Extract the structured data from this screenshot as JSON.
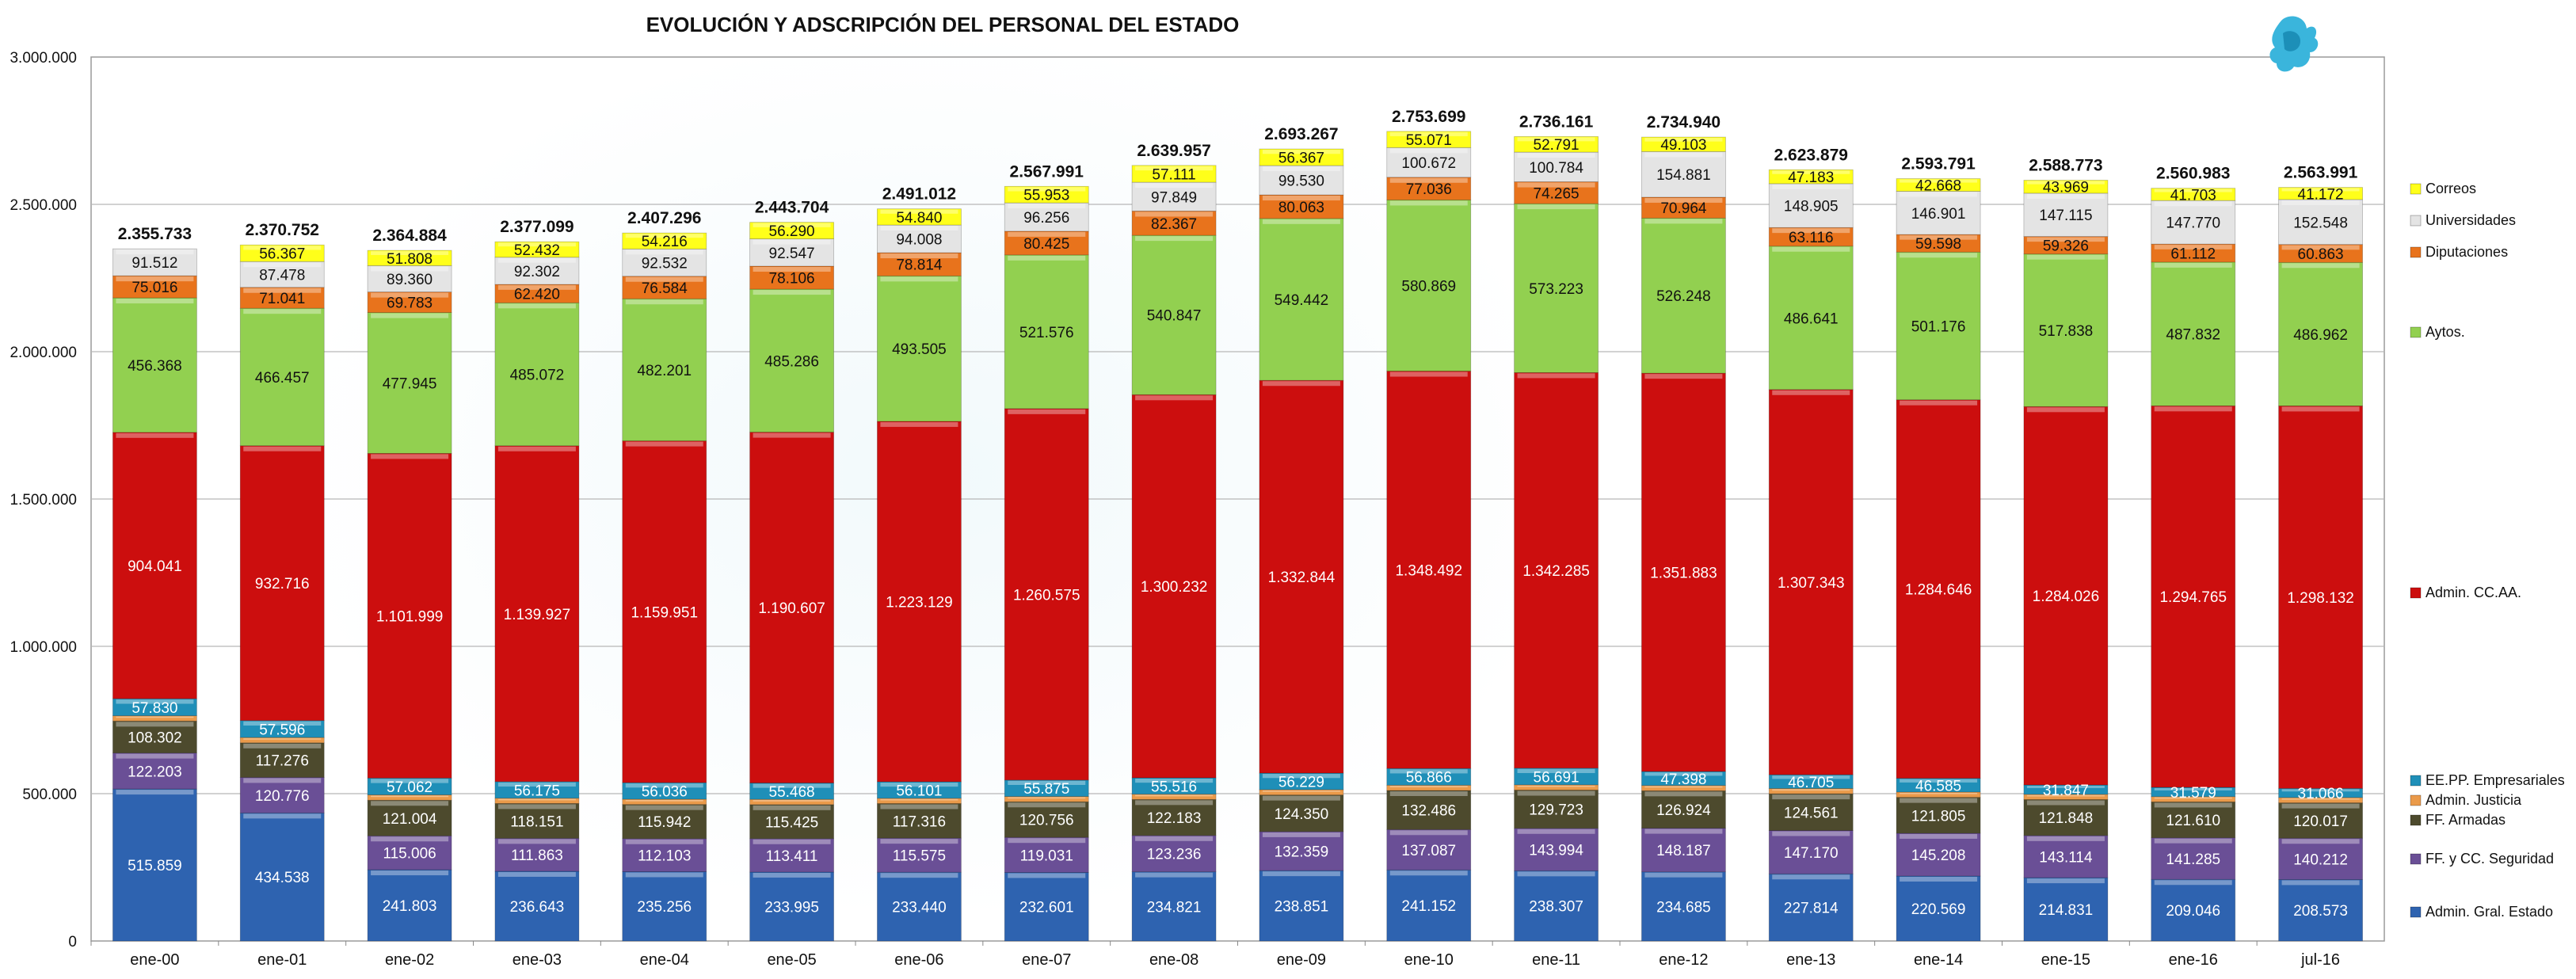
{
  "chart_data": {
    "type": "bar",
    "stacked": true,
    "title": "EVOLUCIÓN Y ADSCRIPCIÓN DEL PERSONAL DEL ESTADO",
    "categories": [
      "ene-00",
      "ene-01",
      "ene-02",
      "ene-03",
      "ene-04",
      "ene-05",
      "ene-06",
      "ene-07",
      "ene-08",
      "ene-09",
      "ene-10",
      "ene-11",
      "ene-12",
      "ene-13",
      "ene-14",
      "ene-15",
      "ene-16",
      "jul-16"
    ],
    "ylim": [
      0,
      3000000
    ],
    "yticks": [
      "0",
      "500.000",
      "1.000.000",
      "1.500.000",
      "2.000.000",
      "2.500.000",
      "3.000.000"
    ],
    "grid": true,
    "legend_position": "right",
    "series": [
      {
        "name": "Admin. Gral. Estado",
        "color": "#2e63b0",
        "text_color": "#ffffff",
        "values": [
          515859,
          434538,
          241803,
          236643,
          235256,
          233995,
          233440,
          232601,
          234821,
          238851,
          241152,
          238307,
          234685,
          227814,
          220569,
          214831,
          209046,
          208573
        ],
        "labels": [
          "515.859",
          "434.538",
          "241.803",
          "236.643",
          "235.256",
          "233.995",
          "233.440",
          "232.601",
          "234.821",
          "238.851",
          "241.152",
          "238.307",
          "234.685",
          "227.814",
          "220.569",
          "214.831",
          "209.046",
          "208.573"
        ]
      },
      {
        "name": "FF. y CC. Seguridad",
        "color": "#6a4f96",
        "text_color": "#ffffff",
        "values": [
          122203,
          120776,
          115006,
          111863,
          112103,
          113411,
          115575,
          119031,
          123236,
          132359,
          137087,
          143994,
          148187,
          147170,
          145208,
          143114,
          141285,
          140212
        ],
        "labels": [
          "122.203",
          "120.776",
          "115.006",
          "111.863",
          "112.103",
          "113.411",
          "115.575",
          "119.031",
          "123.236",
          "132.359",
          "137.087",
          "143.994",
          "148.187",
          "147.170",
          "145.208",
          "143.114",
          "141.285",
          "140.212"
        ]
      },
      {
        "name": "FF. Armadas",
        "color": "#4d4a2d",
        "text_color": "#ffffff",
        "values": [
          108302,
          117276,
          121004,
          118151,
          115942,
          115425,
          117316,
          120756,
          122183,
          124350,
          132486,
          129723,
          126924,
          124561,
          121805,
          121848,
          121610,
          120017
        ],
        "labels": [
          "108.302",
          "117.276",
          "121.004",
          "118.151",
          "115.942",
          "115.425",
          "117.316",
          "120.756",
          "122.183",
          "124.350",
          "132.486",
          "129.723",
          "126.924",
          "124.561",
          "121.805",
          "121.848",
          "121.610",
          "120.017"
        ]
      },
      {
        "name": "Admin. Justicia",
        "color": "#ea9a4a",
        "text_color": "#ffffff",
        "values": [
          18000,
          18000,
          18000,
          18000,
          18000,
          18000,
          18000,
          18000,
          18000,
          18000,
          18000,
          18000,
          18000,
          18000,
          18000,
          18000,
          18000,
          18000
        ],
        "labels": [
          "",
          "",
          "",
          "",
          "",
          "",
          "",
          "",
          "",
          "",
          "",
          "",
          "",
          "",
          "",
          "",
          "",
          ""
        ]
      },
      {
        "name": "EE.PP. Empresariales",
        "color": "#1f8fb8",
        "text_color": "#ffffff",
        "values": [
          57830,
          57596,
          57062,
          56175,
          56036,
          55468,
          56101,
          55875,
          55516,
          56229,
          56866,
          56691,
          47398,
          46705,
          46585,
          31847,
          31579,
          31066
        ],
        "labels": [
          "57.830",
          "57.596",
          "57.062",
          "56.175",
          "56.036",
          "55.468",
          "56.101",
          "55.875",
          "55.516",
          "56.229",
          "56.866",
          "56.691",
          "47.398",
          "46.705",
          "46.585",
          "31.847",
          "31.579",
          "31.066"
        ]
      },
      {
        "name": "Admin. CC.AA.",
        "color": "#cc0e0e",
        "text_color": "#ffffff",
        "values": [
          904041,
          932716,
          1101999,
          1139927,
          1159951,
          1190607,
          1223129,
          1260575,
          1300232,
          1332844,
          1348492,
          1342285,
          1351883,
          1307343,
          1284646,
          1284026,
          1294765,
          1298132
        ],
        "labels": [
          "904.041",
          "932.716",
          "1.101.999",
          "1.139.927",
          "1.159.951",
          "1.190.607",
          "1.223.129",
          "1.260.575",
          "1.300.232",
          "1.332.844",
          "1.348.492",
          "1.342.285",
          "1.351.883",
          "1.307.343",
          "1.284.646",
          "1.284.026",
          "1.294.765",
          "1.298.132"
        ]
      },
      {
        "name": "Aytos.",
        "color": "#92d050",
        "text_color": "#111111",
        "values": [
          456368,
          466457,
          477945,
          485072,
          482201,
          485286,
          493505,
          521576,
          540847,
          549442,
          580869,
          573223,
          526248,
          486641,
          501176,
          517838,
          487832,
          486962
        ],
        "labels": [
          "456.368",
          "466.457",
          "477.945",
          "485.072",
          "482.201",
          "485.286",
          "493.505",
          "521.576",
          "540.847",
          "549.442",
          "580.869",
          "573.223",
          "526.248",
          "486.641",
          "501.176",
          "517.838",
          "487.832",
          "486.962"
        ]
      },
      {
        "name": "Diputaciones",
        "color": "#e8731c",
        "text_color": "#111111",
        "values": [
          75016,
          71041,
          69783,
          62420,
          76584,
          78106,
          78814,
          80425,
          82367,
          80063,
          77036,
          74265,
          70964,
          63116,
          59598,
          59326,
          61112,
          60863
        ],
        "labels": [
          "75.016",
          "71.041",
          "69.783",
          "62.420",
          "76.584",
          "78.106",
          "78.814",
          "80.425",
          "82.367",
          "80.063",
          "77.036",
          "74.265",
          "70.964",
          "63.116",
          "59.598",
          "59.326",
          "61.112",
          "60.863"
        ]
      },
      {
        "name": "Universidades",
        "color": "#e4e4e4",
        "text_color": "#111111",
        "values": [
          91512,
          87478,
          89360,
          92302,
          92532,
          92547,
          94008,
          96256,
          97849,
          99530,
          100672,
          100784,
          154881,
          148905,
          146901,
          147115,
          147770,
          152548
        ],
        "labels": [
          "91.512",
          "87.478",
          "89.360",
          "92.302",
          "92.532",
          "92.547",
          "94.008",
          "96.256",
          "97.849",
          "99.530",
          "100.672",
          "100.784",
          "154.881",
          "148.905",
          "146.901",
          "147.115",
          "147.770",
          "152.548"
        ]
      },
      {
        "name": "Correos",
        "color": "#ffff1a",
        "text_color": "#111111",
        "values": [
          0,
          56367,
          51808,
          52432,
          54216,
          56290,
          54840,
          55953,
          57111,
          56367,
          55071,
          52791,
          49103,
          47183,
          42668,
          43969,
          41703,
          41172
        ],
        "labels": [
          "",
          "56.367",
          "51.808",
          "52.432",
          "54.216",
          "56.290",
          "54.840",
          "55.953",
          "57.111",
          "56.367",
          "55.071",
          "52.791",
          "49.103",
          "47.183",
          "42.668",
          "43.969",
          "41.703",
          "41.172"
        ]
      }
    ],
    "totals": [
      "2.355.733",
      "2.370.752",
      "2.364.884",
      "2.377.099",
      "2.407.296",
      "2.443.704",
      "2.491.012",
      "2.567.991",
      "2.639.957",
      "2.693.267",
      "2.753.699",
      "2.736.161",
      "2.734.940",
      "2.623.879",
      "2.593.791",
      "2.588.773",
      "2.560.983",
      "2.563.991"
    ],
    "legend_order": [
      "Correos",
      "Universidades",
      "Diputaciones",
      "Aytos.",
      "Admin. CC.AA.",
      "EE.PP. Empresariales",
      "Admin. Justicia",
      "FF. Armadas",
      "FF. y CC. Seguridad",
      "Admin. Gral. Estado"
    ]
  }
}
